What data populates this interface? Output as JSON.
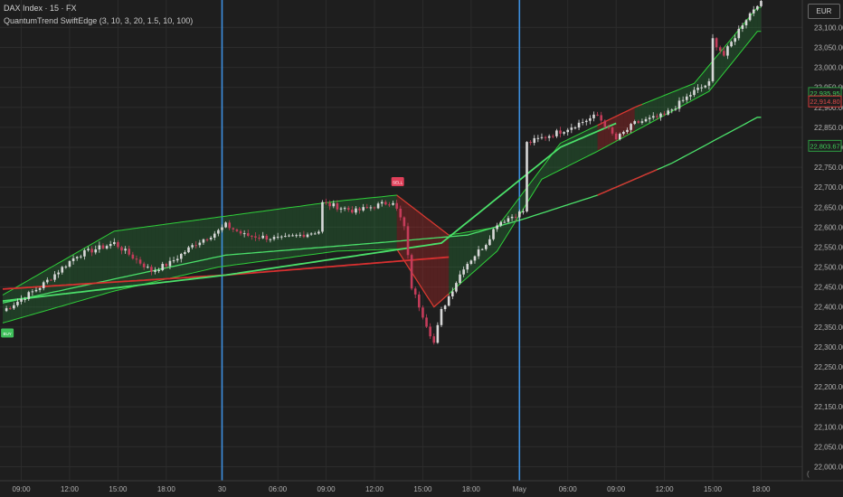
{
  "header": {
    "symbol": "DAX Index · 15 · FX",
    "indicator": "QuantumTrend SwiftEdge (3, 10, 3, 20, 1.5, 10, 100)"
  },
  "currency_button": "EUR",
  "price_tags": [
    {
      "value": "22,935.95",
      "color": "#2ea043"
    },
    {
      "value": "22,914.80",
      "color": "#d23a3a"
    },
    {
      "value": "22,803.67",
      "color": "#2ea043"
    }
  ],
  "colors": {
    "background": "#1e1e1e",
    "grid": "#2c2c2c",
    "candle_up": "#d8d8d8",
    "candle_down": "#c43c5a",
    "session_line": "#3d8fdf",
    "band_green": "#2fd03a",
    "band_red": "#e03030",
    "trend_green": "#4be06a",
    "trend_red": "#d83030"
  },
  "signals": [
    {
      "label": "BUY",
      "x_index": 1,
      "type": "buy"
    },
    {
      "label": "SELL",
      "x_index": 106,
      "type": "sell"
    }
  ],
  "chart_data": {
    "type": "candlestick",
    "title": "DAX Index · 15 · FX",
    "x_tick_labels": [
      "09:00",
      "12:00",
      "15:00",
      "18:00",
      "30",
      "06:00",
      "09:00",
      "12:00",
      "15:00",
      "18:00",
      "May",
      "06:00",
      "09:00",
      "12:00",
      "15:00",
      "18:00"
    ],
    "y_tick_labels": [
      "23,100.00",
      "23,050.00",
      "23,000.00",
      "22,950.00",
      "22,900.00",
      "22,850.00",
      "22,800.00",
      "22,750.00",
      "22,700.00",
      "22,650.00",
      "22,600.00",
      "22,550.00",
      "22,500.00",
      "22,450.00",
      "22,400.00",
      "22,350.00",
      "22,300.00",
      "22,250.00",
      "22,200.00",
      "22,150.00",
      "22,100.00",
      "22,050.00",
      "22,000.00"
    ],
    "ylim": [
      21995,
      23150
    ],
    "session_separators": [
      "30",
      "May"
    ],
    "close_anchors": [
      [
        0,
        22390
      ],
      [
        10,
        22450
      ],
      [
        20,
        22530
      ],
      [
        30,
        22560
      ],
      [
        40,
        22490
      ],
      [
        45,
        22510
      ],
      [
        52,
        22560
      ],
      [
        58,
        22590
      ],
      [
        60,
        22605
      ],
      [
        65,
        22580
      ],
      [
        75,
        22570
      ],
      [
        85,
        22590
      ],
      [
        86,
        22660
      ],
      [
        95,
        22640
      ],
      [
        105,
        22665
      ],
      [
        108,
        22600
      ],
      [
        110,
        22450
      ],
      [
        113,
        22380
      ],
      [
        116,
        22310
      ],
      [
        118,
        22390
      ],
      [
        124,
        22500
      ],
      [
        130,
        22560
      ],
      [
        133,
        22610
      ],
      [
        140,
        22640
      ],
      [
        141,
        22810
      ],
      [
        150,
        22840
      ],
      [
        160,
        22880
      ],
      [
        165,
        22820
      ],
      [
        170,
        22860
      ],
      [
        178,
        22880
      ],
      [
        186,
        22940
      ],
      [
        190,
        22960
      ],
      [
        191,
        23070
      ],
      [
        194,
        23030
      ],
      [
        199,
        23110
      ],
      [
        203,
        23160
      ]
    ],
    "series": [
      {
        "name": "upper band",
        "type": "line",
        "points": [
          [
            0,
            22430
          ],
          [
            30,
            22590
          ],
          [
            58,
            22625
          ],
          [
            90,
            22665
          ],
          [
            106,
            22680
          ],
          [
            120,
            22580
          ],
          [
            133,
            22600
          ],
          [
            150,
            22810
          ],
          [
            170,
            22900
          ],
          [
            186,
            22960
          ],
          [
            203,
            23150
          ]
        ]
      },
      {
        "name": "lower band",
        "type": "line",
        "points": [
          [
            0,
            22360
          ],
          [
            30,
            22440
          ],
          [
            58,
            22500
          ],
          [
            90,
            22540
          ],
          [
            106,
            22545
          ],
          [
            116,
            22400
          ],
          [
            133,
            22540
          ],
          [
            145,
            22720
          ],
          [
            160,
            22790
          ],
          [
            170,
            22840
          ],
          [
            190,
            22940
          ],
          [
            203,
            23090
          ]
        ]
      },
      {
        "name": "long trend",
        "type": "line",
        "points": [
          [
            0,
            22410
          ],
          [
            60,
            22530
          ],
          [
            100,
            22560
          ],
          [
            125,
            22580
          ],
          [
            140,
            22620
          ],
          [
            160,
            22680
          ],
          [
            180,
            22760
          ],
          [
            203,
            22875
          ]
        ]
      },
      {
        "name": "trend red",
        "type": "line",
        "points": [
          [
            0,
            22445
          ],
          [
            60,
            22480
          ],
          [
            120,
            22525
          ]
        ]
      },
      {
        "name": "trend green",
        "type": "line",
        "points": [
          [
            0,
            22415
          ],
          [
            60,
            22480
          ],
          [
            118,
            22560
          ],
          [
            150,
            22800
          ],
          [
            165,
            22860
          ]
        ]
      }
    ]
  }
}
